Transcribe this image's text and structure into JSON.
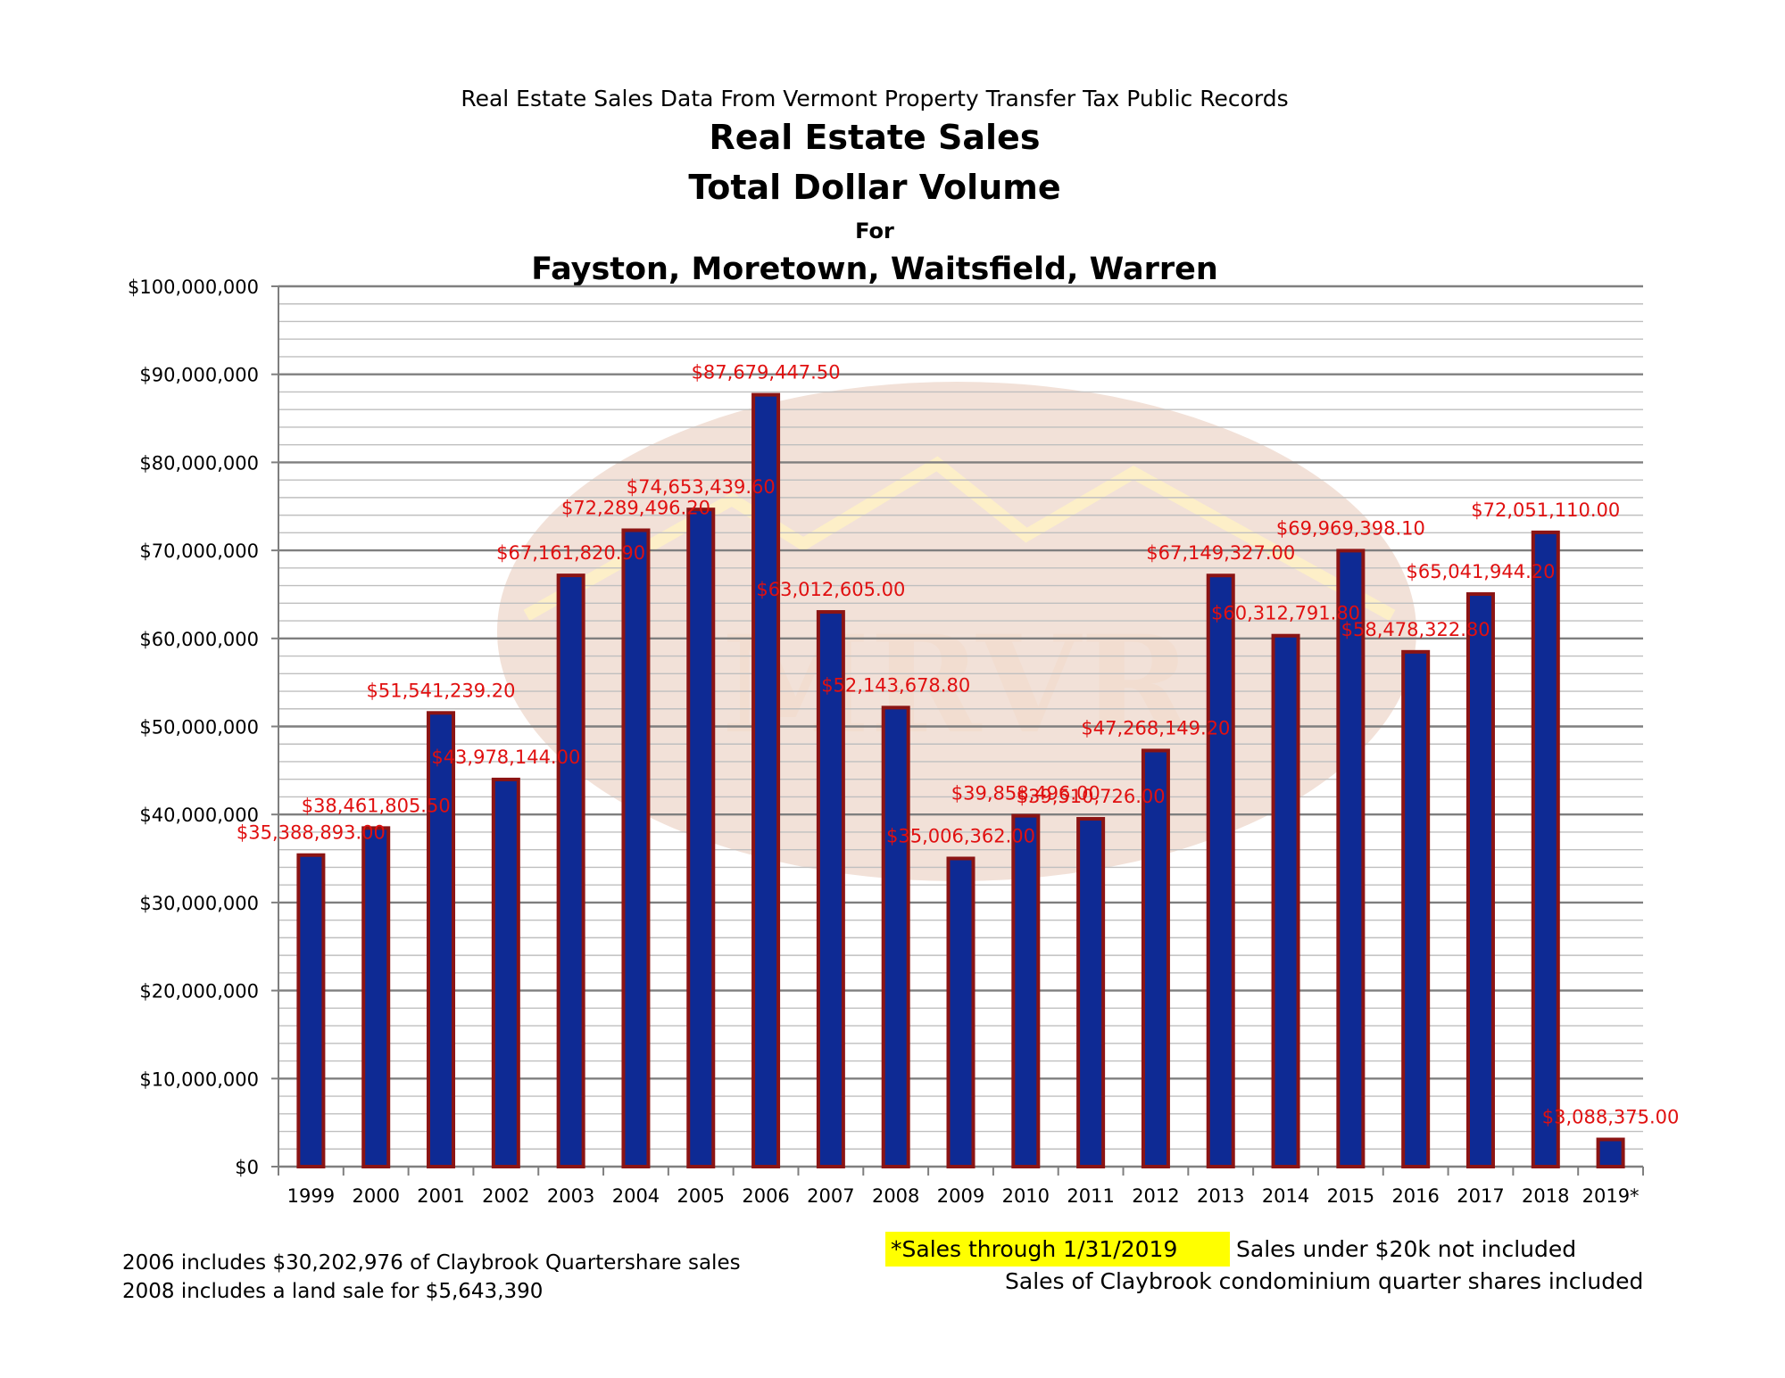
{
  "colors": {
    "bar_fill": "#0e2a94",
    "bar_outline": "#8b1414",
    "label_color": "#e01010",
    "grid_major": "#7f7f7f",
    "grid_minor": "#bfbfbf",
    "highlight": "#ffff00",
    "watermark": "#e8c9b8"
  },
  "notes": {
    "claybrook": "2006 includes $30,202,976 of Claybrook Quartershare sales",
    "land_sale": "2008 includes a land sale for $5,643,390",
    "through": "*Sales through 1/31/2019",
    "under20k": "Sales under $20k not included",
    "quarter_shares": "Sales of Claybrook condominium quarter shares included"
  },
  "chart_data": {
    "type": "bar",
    "supertitle": "Real Estate Sales Data From Vermont Property Transfer Tax Public Records",
    "title_lines": [
      "Real Estate Sales",
      "Total Dollar Volume",
      "For",
      "Fayston, Moretown, Waitsfield, Warren"
    ],
    "categories": [
      "1999",
      "2000",
      "2001",
      "2002",
      "2003",
      "2004",
      "2005",
      "2006",
      "2007",
      "2008",
      "2009",
      "2010",
      "2011",
      "2012",
      "2013",
      "2014",
      "2015",
      "2016",
      "2017",
      "2018",
      "2019*"
    ],
    "values": [
      35388893.0,
      38461805.5,
      51541239.2,
      43978144.0,
      67161820.9,
      72289496.2,
      74653439.6,
      87679447.5,
      63012605.0,
      52143678.8,
      35006362.0,
      39858496.0,
      39510726.0,
      47268149.2,
      67149327.0,
      60312791.8,
      69969398.1,
      58478322.8,
      65041944.2,
      72051110.0,
      3088375.0
    ],
    "data_labels": [
      "$35,388,893.00",
      "$38,461,805.50",
      "$51,541,239.20",
      "$43,978,144.00",
      "$67,161,820.90",
      "$72,289,496.20",
      "$74,653,439.60",
      "$87,679,447.50",
      "$63,012,605.00",
      "$52,143,678.80",
      "$35,006,362.00",
      "$39,858,496.00",
      "$39,510,726.00",
      "$47,268,149.20",
      "$67,149,327.00",
      "$60,312,791.80",
      "$69,969,398.10",
      "$58,478,322.80",
      "$65,041,944.20",
      "$72,051,110.00",
      "$3,088,375.00"
    ],
    "y_ticks": [
      "$0",
      "$10,000,000",
      "$20,000,000",
      "$30,000,000",
      "$40,000,000",
      "$50,000,000",
      "$60,000,000",
      "$70,000,000",
      "$80,000,000",
      "$90,000,000",
      "$100,000,000"
    ],
    "ylim": [
      0,
      100000000
    ],
    "y_major_step": 10000000,
    "y_minor_step": 2000000,
    "grid": true,
    "watermark_text": "MRVR"
  }
}
